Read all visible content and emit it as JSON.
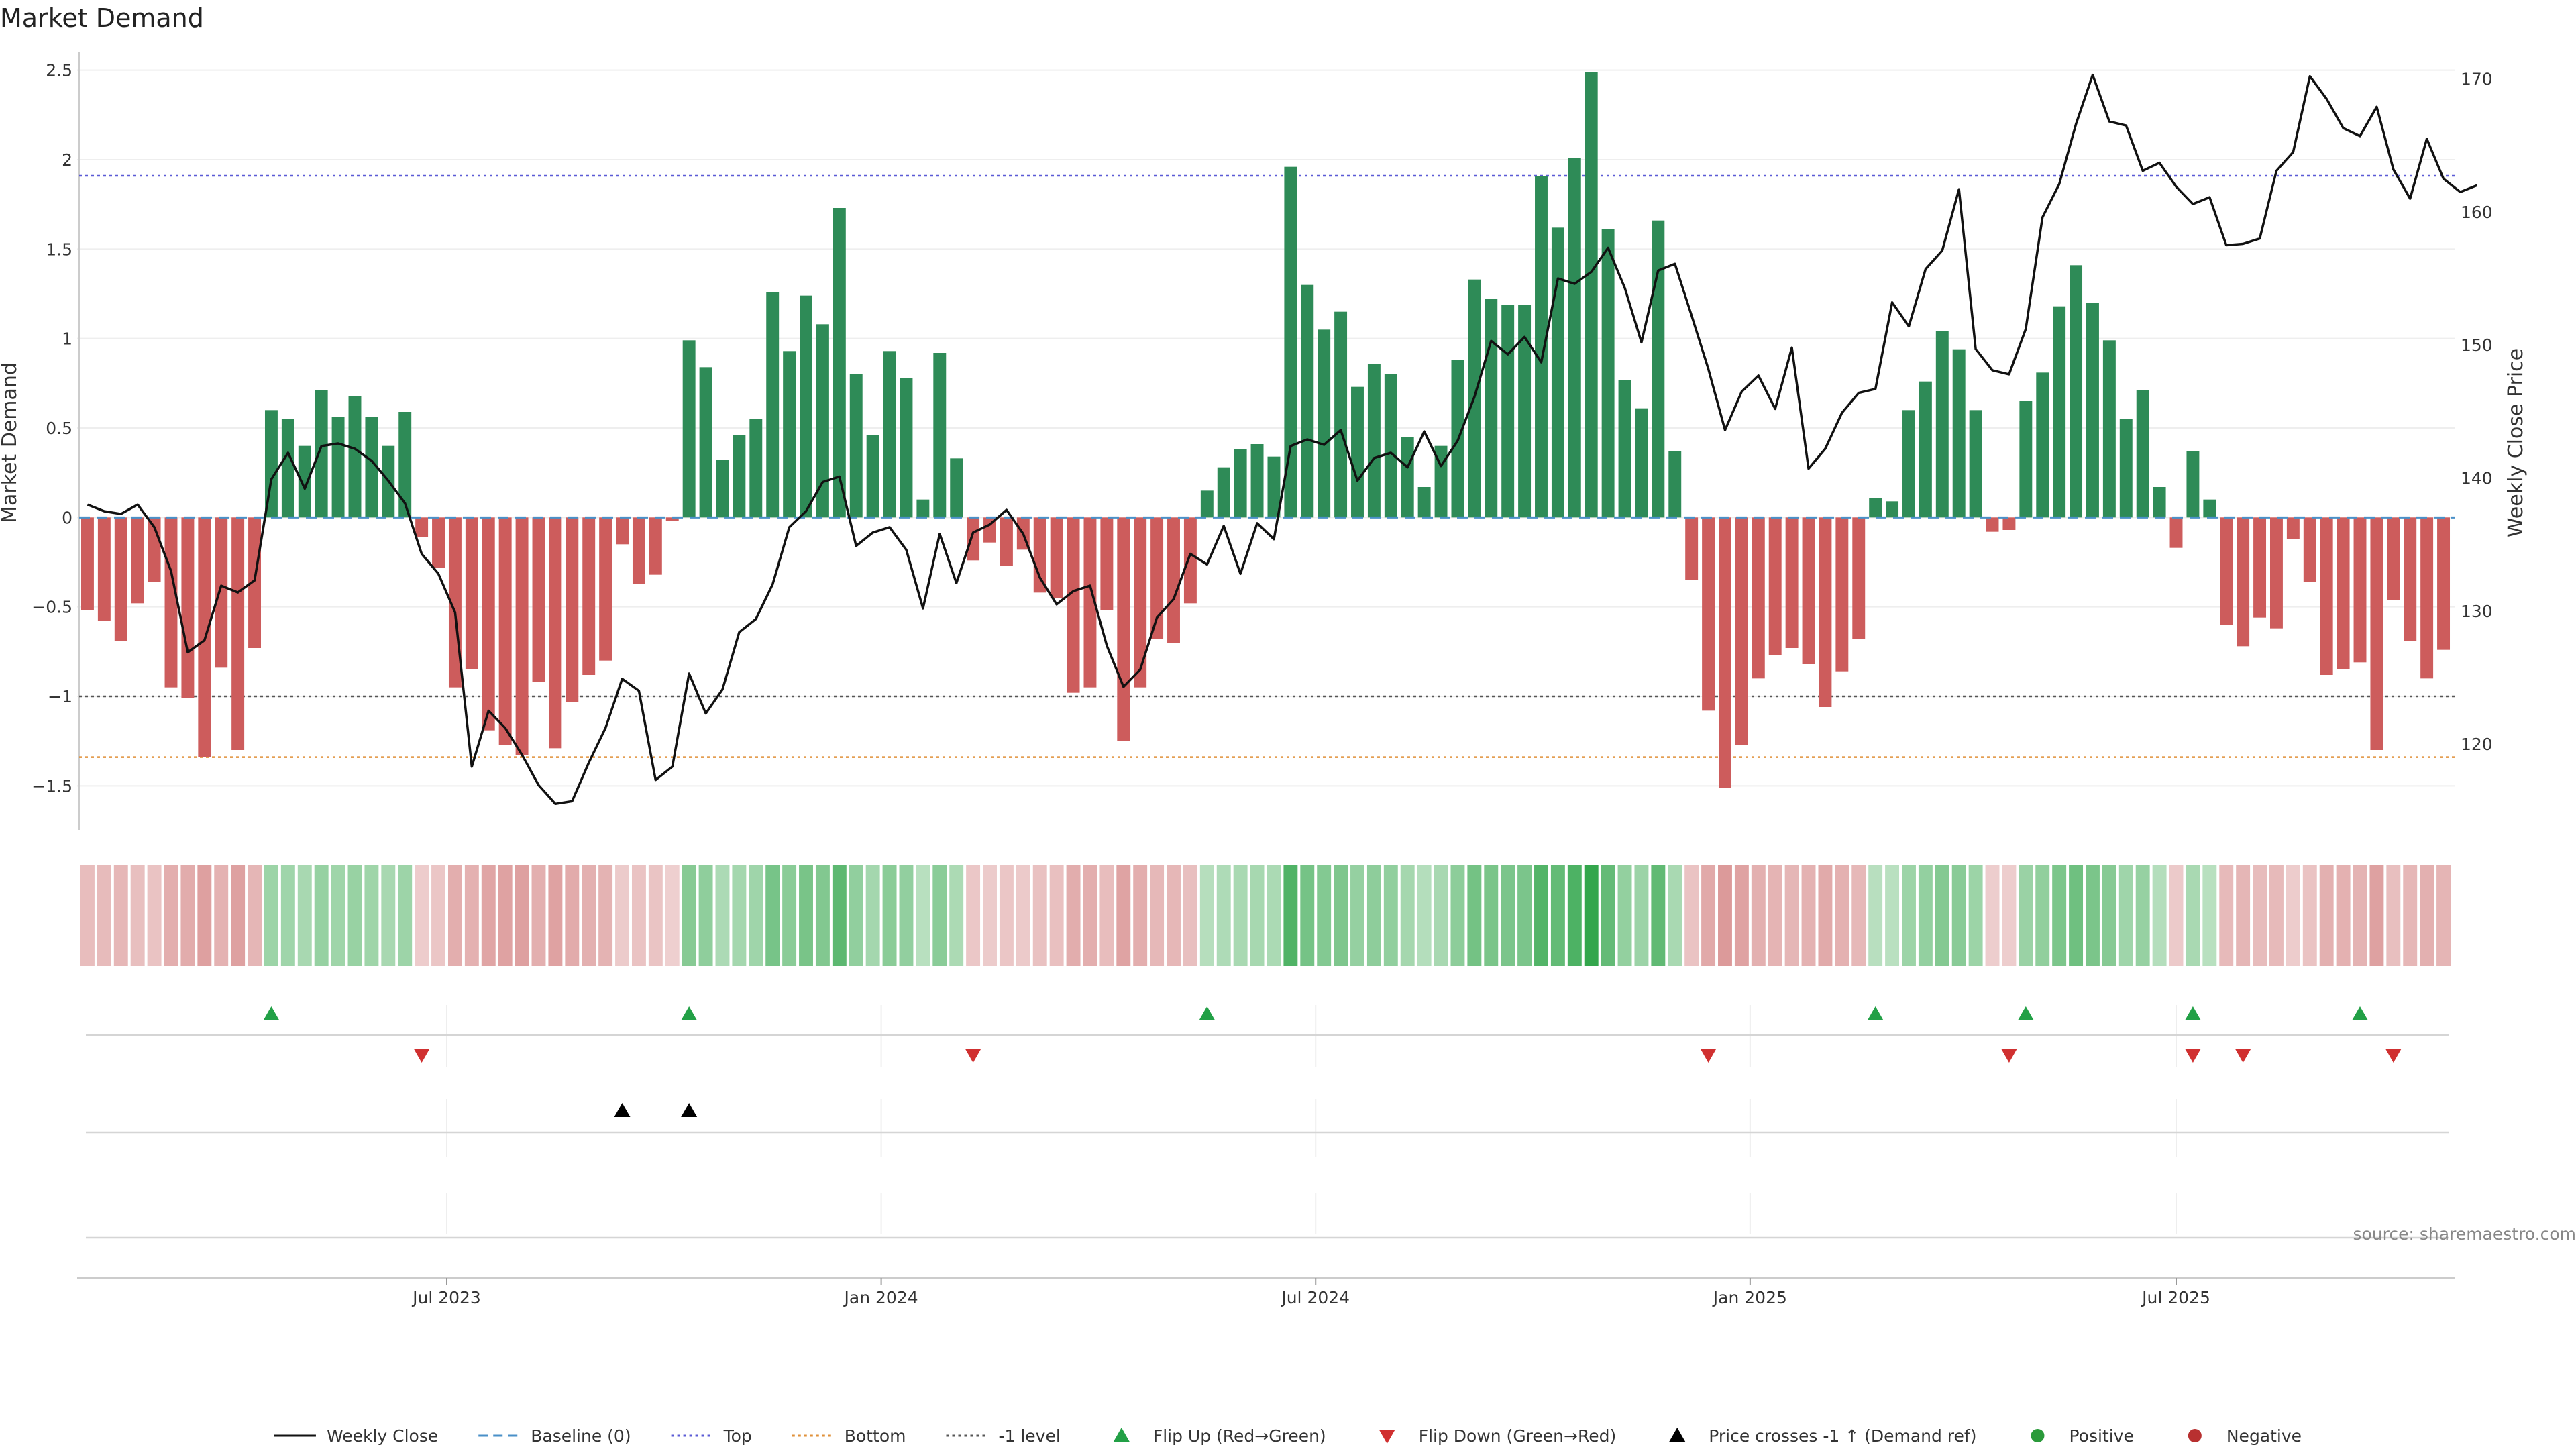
{
  "title": "Market Demand",
  "source_note": "source: sharemaestro.com",
  "colors": {
    "positive": "#2e8b57",
    "negative": "#cd5c5c",
    "price_line": "#111111",
    "baseline": "#4a90c8",
    "top": "#5b5bd6",
    "bottom": "#e0913a",
    "minus_one": "#555555",
    "flip_up": "#22a046",
    "flip_down": "#d03030",
    "crosses": "#000000",
    "legend_positive": "#2a9a3a",
    "legend_negative": "#b83030"
  },
  "legend": [
    {
      "label": "Weekly Close",
      "kind": "line-solid",
      "color_key": "price_line"
    },
    {
      "label": "Baseline (0)",
      "kind": "line-dash",
      "color_key": "baseline"
    },
    {
      "label": "Top",
      "kind": "line-dot",
      "color_key": "top"
    },
    {
      "label": "Bottom",
      "kind": "line-dot",
      "color_key": "bottom"
    },
    {
      "label": "-1 level",
      "kind": "line-dot",
      "color_key": "minus_one"
    },
    {
      "label": "Flip Up (Red→Green)",
      "kind": "tri-up",
      "color_key": "flip_up"
    },
    {
      "label": "Flip Down (Green→Red)",
      "kind": "tri-down",
      "color_key": "flip_down"
    },
    {
      "label": "Price crosses -1 ↑ (Demand ref)",
      "kind": "tri-up",
      "color_key": "crosses"
    },
    {
      "label": "Positive",
      "kind": "dot",
      "color_key": "legend_positive"
    },
    {
      "label": "Negative",
      "kind": "dot",
      "color_key": "legend_negative"
    }
  ],
  "chart_data": {
    "type": "bar",
    "title": "Market Demand",
    "ylabel": "Market Demand",
    "y2label": "Weekly Close Price",
    "ylim": [
      -1.75,
      2.6
    ],
    "y2lim": [
      113.5,
      172
    ],
    "yticks": [
      {
        "v": 2.5,
        "label": "2.5"
      },
      {
        "v": 2,
        "label": "2"
      },
      {
        "v": 1.5,
        "label": "1.5"
      },
      {
        "v": 1,
        "label": "1"
      },
      {
        "v": 0.5,
        "label": "0.5"
      },
      {
        "v": 0,
        "label": "0"
      },
      {
        "v": -0.5,
        "label": "−0.5"
      },
      {
        "v": -1,
        "label": "−1"
      },
      {
        "v": -1.5,
        "label": "−1.5"
      }
    ],
    "y2ticks": [
      {
        "v": 170,
        "label": "170"
      },
      {
        "v": 160,
        "label": "160"
      },
      {
        "v": 150,
        "label": "150"
      },
      {
        "v": 140,
        "label": "140"
      },
      {
        "v": 130,
        "label": "130"
      },
      {
        "v": 120,
        "label": "120"
      }
    ],
    "xticks": [
      {
        "week": 21.5,
        "label": "Jul 2023"
      },
      {
        "week": 47.5,
        "label": "Jan 2024"
      },
      {
        "week": 73.5,
        "label": "Jul 2024"
      },
      {
        "week": 99.5,
        "label": "Jan 2025"
      },
      {
        "week": 125,
        "label": "Jul 2025"
      }
    ],
    "reference_lines": {
      "baseline": 0,
      "top": 1.91,
      "bottom": -1.34,
      "minus_one": -1
    },
    "demand": [
      -0.52,
      -0.58,
      -0.69,
      -0.48,
      -0.36,
      -0.95,
      -1.01,
      -1.34,
      -0.84,
      -1.3,
      -0.73,
      0.6,
      0.55,
      0.4,
      0.71,
      0.56,
      0.68,
      0.56,
      0.4,
      0.59,
      -0.11,
      -0.28,
      -0.95,
      -0.85,
      -1.19,
      -1.27,
      -1.33,
      -0.92,
      -1.29,
      -1.03,
      -0.88,
      -0.8,
      -0.15,
      -0.37,
      -0.32,
      -0.02,
      0.99,
      0.84,
      0.32,
      0.46,
      0.55,
      1.26,
      0.93,
      1.24,
      1.08,
      1.73,
      0.8,
      0.46,
      0.93,
      0.78,
      0.1,
      0.92,
      0.33,
      -0.24,
      -0.14,
      -0.27,
      -0.18,
      -0.42,
      -0.45,
      -0.98,
      -0.95,
      -0.52,
      -1.25,
      -0.95,
      -0.68,
      -0.7,
      -0.48,
      0.15,
      0.28,
      0.38,
      0.41,
      0.34,
      1.96,
      1.3,
      1.05,
      1.15,
      0.73,
      0.86,
      0.8,
      0.45,
      0.17,
      0.4,
      0.88,
      1.33,
      1.22,
      1.19,
      1.19,
      1.91,
      1.62,
      2.01,
      2.49,
      1.61,
      0.77,
      0.61,
      1.66,
      0.37,
      -0.35,
      -1.08,
      -1.51,
      -1.27,
      -0.9,
      -0.77,
      -0.73,
      -0.82,
      -1.06,
      -0.86,
      -0.68,
      0.11,
      0.09,
      0.6,
      0.76,
      1.04,
      0.94,
      0.6,
      -0.08,
      -0.07,
      0.65,
      0.81,
      1.18,
      1.41,
      1.2,
      0.99,
      0.55,
      0.71,
      0.17,
      -0.17,
      0.37,
      0.1,
      -0.6,
      -0.72,
      -0.56,
      -0.62,
      -0.12,
      -0.36,
      -0.88,
      -0.85,
      -0.81,
      -1.3,
      -0.46,
      -0.69,
      -0.9,
      -0.74
    ],
    "price": [
      138,
      137.5,
      137.3,
      138,
      136.3,
      133,
      126.9,
      127.8,
      131.9,
      131.4,
      132.3,
      139.9,
      141.9,
      139.2,
      142.4,
      142.6,
      142.2,
      141.3,
      139.8,
      138.1,
      134.3,
      132.8,
      129.9,
      118.3,
      122.5,
      121.2,
      119.2,
      116.9,
      115.5,
      115.7,
      118.6,
      121.2,
      124.9,
      124,
      117.3,
      118.3,
      125.3,
      122.3,
      124.1,
      128.4,
      129.4,
      132,
      136.3,
      137.5,
      139.7,
      140.1,
      134.9,
      135.9,
      136.3,
      134.6,
      130.2,
      135.8,
      132.1,
      135.9,
      136.5,
      137.6,
      135.8,
      132.5,
      130.5,
      131.5,
      131.9,
      127.4,
      124.3,
      125.6,
      129.5,
      130.9,
      134.3,
      133.5,
      136.4,
      132.8,
      136.6,
      135.4,
      142.4,
      142.9,
      142.5,
      143.6,
      139.8,
      141.5,
      141.9,
      140.8,
      143.5,
      140.9,
      142.8,
      146.1,
      150.3,
      149.3,
      150.6,
      148.7,
      155,
      154.6,
      155.5,
      157.3,
      154.3,
      150.2,
      155.6,
      156.1,
      152.2,
      148.2,
      143.6,
      146.5,
      147.7,
      145.2,
      149.8,
      140.7,
      142.2,
      144.9,
      146.4,
      146.7,
      153.2,
      151.4,
      155.7,
      157.1,
      161.7,
      149.7,
      148.1,
      147.8,
      151.2,
      159.6,
      162.1,
      166.6,
      170.3,
      166.8,
      166.5,
      163.1,
      163.7,
      161.9,
      160.6,
      161.1,
      157.5,
      157.6,
      158,
      163.1,
      164.5,
      170.2,
      168.5,
      166.3,
      165.7,
      167.9,
      163.2,
      161,
      165.5,
      162.5,
      161.5,
      162
    ],
    "flip_up_weeks": [
      11,
      36,
      67,
      107,
      116,
      126,
      136
    ],
    "flip_down_weeks": [
      20,
      53,
      97,
      115,
      126,
      129,
      138
    ],
    "price_cross_weeks": [
      32,
      36
    ]
  }
}
